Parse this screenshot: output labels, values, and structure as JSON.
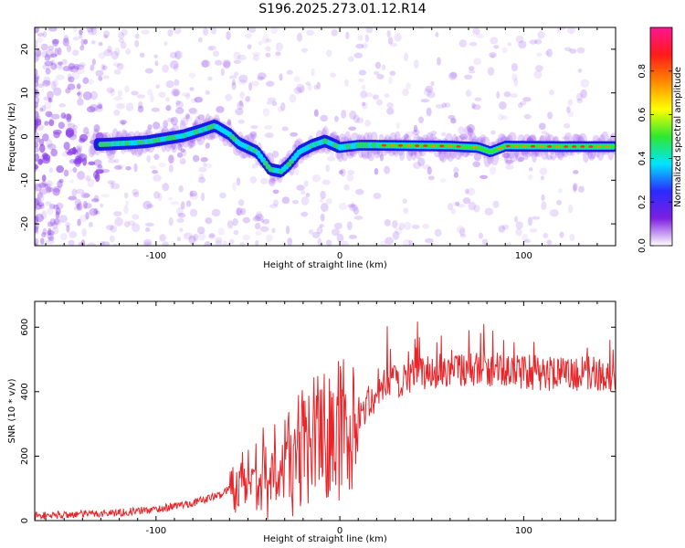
{
  "title": "S196.2025.273.01.12.R14",
  "colors": {
    "snr_line": "#e8262a",
    "scale": [
      "#ffffff",
      "#7e1fe0",
      "#2a2aff",
      "#00e5ff",
      "#2ee82e",
      "#ffff00",
      "#ff8a00",
      "#ff1a1a",
      "#ff1493"
    ]
  },
  "chart_data": [
    {
      "type": "heatmap",
      "name": "spectrogram",
      "xlabel": "Height of straight line (km)",
      "ylabel": "Frequency (Hz)",
      "xlim": [
        -166,
        150
      ],
      "ylim": [
        -25,
        25
      ],
      "xticks": [
        -100,
        0,
        100
      ],
      "yticks": [
        -20,
        -10,
        0,
        10,
        20
      ],
      "colorbar": {
        "label": "Normalized spectral amplitude",
        "range": [
          0,
          1
        ],
        "ticks": [
          0.0,
          0.2,
          0.4,
          0.6,
          0.8
        ]
      },
      "ridge": [
        {
          "x": -130,
          "y": -1.8
        },
        {
          "x": -115,
          "y": -1.5
        },
        {
          "x": -105,
          "y": -1.2
        },
        {
          "x": -95,
          "y": -0.5
        },
        {
          "x": -85,
          "y": 0.2
        },
        {
          "x": -75,
          "y": 1.5
        },
        {
          "x": -68,
          "y": 2.5
        },
        {
          "x": -60,
          "y": 0.5
        },
        {
          "x": -55,
          "y": -1.5
        },
        {
          "x": -45,
          "y": -3.5
        },
        {
          "x": -38,
          "y": -7.5
        },
        {
          "x": -32,
          "y": -8
        },
        {
          "x": -28,
          "y": -6.5
        },
        {
          "x": -22,
          "y": -3.5
        },
        {
          "x": -15,
          "y": -2
        },
        {
          "x": -8,
          "y": -1
        },
        {
          "x": 0,
          "y": -2.5
        },
        {
          "x": 10,
          "y": -2
        },
        {
          "x": 20,
          "y": -2
        },
        {
          "x": 60,
          "y": -2.2
        },
        {
          "x": 75,
          "y": -2.5
        },
        {
          "x": 82,
          "y": -3.5
        },
        {
          "x": 90,
          "y": -2.2
        },
        {
          "x": 120,
          "y": -2.3
        },
        {
          "x": 150,
          "y": -2.3
        }
      ]
    },
    {
      "type": "line",
      "name": "snr",
      "xlabel": "Height of straight line (km)",
      "ylabel": "SNR (10 * v/v)",
      "xlim": [
        -166,
        150
      ],
      "ylim": [
        0,
        680
      ],
      "xticks": [
        -100,
        0,
        100
      ],
      "yticks": [
        0,
        200,
        400,
        600
      ],
      "series": [
        {
          "name": "SNR",
          "envelope": [
            {
              "x": -166,
              "y": 15
            },
            {
              "x": -140,
              "y": 20
            },
            {
              "x": -120,
              "y": 25
            },
            {
              "x": -100,
              "y": 35
            },
            {
              "x": -80,
              "y": 55
            },
            {
              "x": -65,
              "y": 80
            },
            {
              "x": -55,
              "y": 120
            },
            {
              "x": -45,
              "y": 150
            },
            {
              "x": -35,
              "y": 185
            },
            {
              "x": -25,
              "y": 210
            },
            {
              "x": -15,
              "y": 245
            },
            {
              "x": -5,
              "y": 275
            },
            {
              "x": 5,
              "y": 300
            },
            {
              "x": 15,
              "y": 360
            },
            {
              "x": 25,
              "y": 420
            },
            {
              "x": 40,
              "y": 455
            },
            {
              "x": 60,
              "y": 470
            },
            {
              "x": 80,
              "y": 470
            },
            {
              "x": 100,
              "y": 460
            },
            {
              "x": 120,
              "y": 455
            },
            {
              "x": 150,
              "y": 455
            }
          ]
        }
      ]
    }
  ]
}
